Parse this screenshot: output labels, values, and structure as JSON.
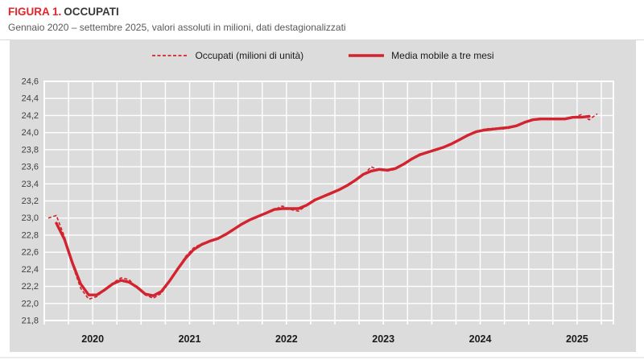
{
  "header": {
    "figure_label": "FIGURA 1.",
    "title": "OCCUPATI",
    "subtitle": "Gennaio 2020 – settembre 2025, valori assoluti in milioni, dati destagionalizzati"
  },
  "colors": {
    "accent_red": "#d2232e",
    "title_red": "#e8232a",
    "panel_bg": "#dcdcdc",
    "grid": "#ffffff",
    "text_dark": "#3a3a3a",
    "text_gray": "#595959"
  },
  "legend": [
    {
      "label": "Occupati (milioni di unità)",
      "style": "dashed"
    },
    {
      "label": "Media mobile a tre mesi",
      "style": "solid"
    }
  ],
  "chart_data": {
    "type": "line",
    "title": "FIGURA 1. OCCUPATI",
    "subtitle": "Gennaio 2020 – settembre 2025, valori assoluti in milioni, dati destagionalizzati",
    "x_unit": "month",
    "x_start": "2020-01",
    "x_end": "2025-09",
    "ylim": [
      21.8,
      24.6
    ],
    "y_step": 0.2,
    "grid": true,
    "legend_position": "top",
    "y_tick_labels": [
      "24,6",
      "24,4",
      "24,2",
      "24,0",
      "23,8",
      "23,6",
      "23,4",
      "23,2",
      "23,0",
      "22,8",
      "22,6",
      "22,4",
      "22,2",
      "22,0",
      "21,8"
    ],
    "x_tick_years": [
      "2020",
      "2021",
      "2022",
      "2023",
      "2024",
      "2025"
    ],
    "series": [
      {
        "name": "Occupati (milioni di unità)",
        "style": "dashed",
        "start_month_index": 0,
        "values": [
          23.0,
          23.03,
          22.78,
          22.45,
          22.18,
          22.05,
          22.08,
          22.16,
          22.24,
          22.3,
          22.28,
          22.18,
          22.1,
          22.06,
          22.12,
          22.25,
          22.4,
          22.55,
          22.65,
          22.7,
          22.72,
          22.76,
          22.8,
          22.86,
          22.94,
          22.98,
          23.02,
          23.06,
          23.1,
          23.14,
          23.1,
          23.08,
          23.15,
          23.22,
          23.25,
          23.28,
          23.33,
          23.38,
          23.44,
          23.5,
          23.6,
          23.56,
          23.55,
          23.57,
          23.63,
          23.7,
          23.75,
          23.77,
          23.8,
          23.83,
          23.87,
          23.92,
          23.97,
          24.01,
          24.04,
          24.05,
          24.04,
          24.05,
          24.08,
          24.12,
          24.15,
          24.17,
          24.16,
          24.15,
          24.16,
          24.18,
          24.21,
          24.15,
          24.22
        ]
      },
      {
        "name": "Media mobile a tre mesi",
        "style": "solid",
        "start_month_index": 1,
        "values": [
          22.94,
          22.75,
          22.47,
          22.23,
          22.1,
          22.1,
          22.16,
          22.23,
          22.27,
          22.25,
          22.19,
          22.11,
          22.09,
          22.14,
          22.26,
          22.4,
          22.53,
          22.63,
          22.69,
          22.73,
          22.76,
          22.81,
          22.87,
          22.93,
          22.98,
          23.02,
          23.06,
          23.1,
          23.11,
          23.11,
          23.11,
          23.15,
          23.21,
          23.25,
          23.29,
          23.33,
          23.38,
          23.44,
          23.51,
          23.55,
          23.57,
          23.56,
          23.58,
          23.63,
          23.69,
          23.74,
          23.77,
          23.8,
          23.83,
          23.87,
          23.92,
          23.97,
          24.01,
          24.03,
          24.04,
          24.05,
          24.06,
          24.08,
          24.12,
          24.15,
          24.16,
          24.16,
          24.16,
          24.16,
          24.18,
          24.18,
          24.19
        ]
      }
    ]
  }
}
